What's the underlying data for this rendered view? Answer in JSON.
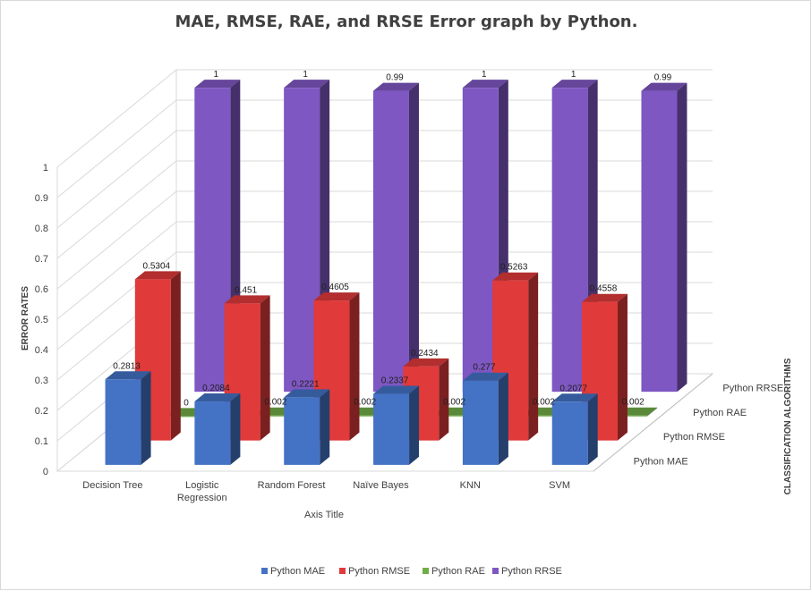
{
  "chart_data": {
    "type": "bar",
    "title": "MAE, RMSE, RAE, and RRSE Error graph by Python.",
    "xlabel": "Axis Title",
    "ylabel": "ERROR RATES",
    "zlabel": "CLASSIFICATION ALGORITHMS",
    "categories": [
      "Decision Tree",
      "Logistic Regression",
      "Random Forest",
      "Naive Bayes",
      "KNN",
      "SVM"
    ],
    "category_lines": [
      [
        "Decision Tree"
      ],
      [
        "Logistic",
        "Regression"
      ],
      [
        "Random Forest"
      ],
      [
        "Naïve Bayes"
      ],
      [
        "KNN"
      ],
      [
        "SVM"
      ]
    ],
    "ylim": [
      0,
      1
    ],
    "yticks": [
      "0",
      "0.1",
      "0.2",
      "0.3",
      "0.4",
      "0.5",
      "0.6",
      "0.7",
      "0.8",
      "0.9",
      "1"
    ],
    "grid": true,
    "legend_position": "bottom",
    "series": [
      {
        "name": "Python MAE",
        "color": "#4472C4",
        "values": [
          0.2813,
          0.2084,
          0.2221,
          0.2337,
          0.277,
          0.2077
        ],
        "labels": [
          "0.2813",
          "0.2084",
          "0.2221",
          "0.2337",
          "0.277",
          "0.2077"
        ]
      },
      {
        "name": "Python RMSE",
        "color": "#E03A3A",
        "values": [
          0.5304,
          0.451,
          0.4605,
          0.2434,
          0.5263,
          0.4558
        ],
        "labels": [
          "0.5304",
          "0.451",
          "0.4605",
          "0.2434",
          "0.5263",
          "0.4558"
        ]
      },
      {
        "name": "Python RAE",
        "color": "#70AD47",
        "values": [
          0,
          0.002,
          0.002,
          0.002,
          0.002,
          0.002
        ],
        "labels": [
          "0",
          "0.002",
          "0.002",
          "0.002",
          "0.002",
          "0.002"
        ]
      },
      {
        "name": "Python RRSE",
        "color": "#7E57C2",
        "values": [
          1,
          1,
          0.99,
          1,
          1,
          0.99
        ],
        "labels": [
          "1",
          "1",
          "0.99",
          "1",
          "1",
          "0.99"
        ]
      }
    ]
  }
}
